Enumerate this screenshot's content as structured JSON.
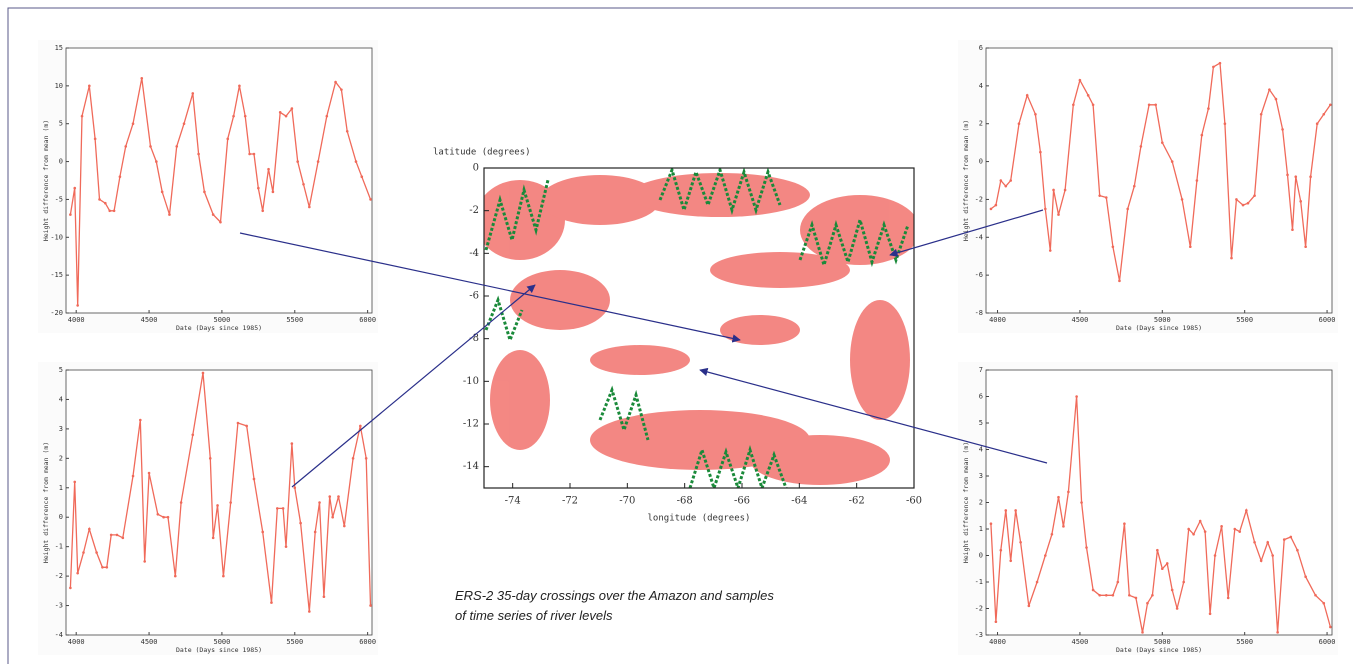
{
  "chart_data": [
    {
      "type": "line",
      "xlabel": "Date (Days since 1985)",
      "ylabel": "Height difference from mean (m)",
      "color": "#f06a5a",
      "xlim": [
        3930,
        6030
      ],
      "xticks": [
        4000,
        4500,
        5000,
        5500,
        6000
      ],
      "ylim": [
        -20,
        15
      ],
      "yticks": [
        -20,
        -15,
        -10,
        -5,
        0,
        5,
        10,
        15
      ],
      "x": [
        3960,
        3990,
        4010,
        4040,
        4090,
        4130,
        4160,
        4200,
        4230,
        4260,
        4300,
        4340,
        4390,
        4450,
        4510,
        4550,
        4590,
        4640,
        4690,
        4740,
        4800,
        4840,
        4880,
        4940,
        4990,
        5040,
        5080,
        5120,
        5160,
        5190,
        5220,
        5250,
        5280,
        5320,
        5350,
        5400,
        5440,
        5480,
        5520,
        5560,
        5600,
        5660,
        5720,
        5780,
        5820,
        5860,
        5920,
        5960,
        6020
      ],
      "values": [
        -7,
        -3.5,
        -19,
        6,
        10,
        3,
        -5,
        -5.5,
        -6.5,
        -6.5,
        -2,
        2,
        5,
        11,
        2,
        0,
        -4,
        -7,
        2,
        5,
        9,
        1,
        -4,
        -7,
        -8,
        3,
        6,
        10,
        6,
        1,
        1,
        -3.5,
        -6.5,
        -1,
        -4,
        6.5,
        6,
        7,
        0,
        -3,
        -6,
        0,
        6,
        10.5,
        9.5,
        4,
        0,
        -2,
        -5
      ]
    },
    {
      "type": "line",
      "xlabel": "Date (Days since 1985)",
      "ylabel": "Height difference from mean (m)",
      "color": "#f06a5a",
      "xlim": [
        3930,
        6030
      ],
      "xticks": [
        4000,
        4500,
        5000,
        5500,
        6000
      ],
      "ylim": [
        -4,
        5
      ],
      "yticks": [
        -4,
        -3,
        -2,
        -1,
        0,
        1,
        2,
        3,
        4,
        5
      ],
      "x": [
        3960,
        3990,
        4010,
        4050,
        4090,
        4140,
        4180,
        4210,
        4240,
        4280,
        4320,
        4390,
        4440,
        4470,
        4500,
        4560,
        4600,
        4630,
        4680,
        4720,
        4800,
        4870,
        4920,
        4940,
        4970,
        5010,
        5060,
        5110,
        5170,
        5220,
        5280,
        5340,
        5380,
        5420,
        5440,
        5480,
        5500,
        5540,
        5600,
        5640,
        5670,
        5700,
        5740,
        5760,
        5800,
        5840,
        5900,
        5950,
        5990,
        6020
      ],
      "values": [
        -2.4,
        1.2,
        -1.9,
        -1.2,
        -0.4,
        -1.2,
        -1.7,
        -1.7,
        -0.6,
        -0.6,
        -0.7,
        1.4,
        3.3,
        -1.5,
        1.5,
        0.1,
        0,
        0,
        -2,
        0.5,
        2.8,
        4.9,
        2,
        -0.7,
        0.4,
        -2,
        0.5,
        3.2,
        3.1,
        1.3,
        -0.5,
        -2.9,
        0.3,
        0.3,
        -1,
        2.5,
        1,
        -0.2,
        -3.2,
        -0.5,
        0.5,
        -2.7,
        0.7,
        0,
        0.7,
        -0.3,
        2,
        3.1,
        2,
        -3
      ]
    },
    {
      "type": "line",
      "xlabel": "Date (Days since 1985)",
      "ylabel": "Height difference from mean (m)",
      "color": "#f06a5a",
      "xlim": [
        3930,
        6030
      ],
      "xticks": [
        4000,
        4500,
        5000,
        5500,
        6000
      ],
      "ylim": [
        -8,
        6
      ],
      "yticks": [
        -8,
        -6,
        -4,
        -2,
        0,
        2,
        4,
        6
      ],
      "x": [
        3960,
        3990,
        4020,
        4050,
        4080,
        4130,
        4180,
        4230,
        4260,
        4290,
        4320,
        4340,
        4370,
        4410,
        4460,
        4500,
        4550,
        4580,
        4620,
        4660,
        4700,
        4740,
        4790,
        4830,
        4870,
        4920,
        4960,
        5000,
        5060,
        5120,
        5170,
        5210,
        5240,
        5280,
        5310,
        5350,
        5380,
        5420,
        5450,
        5490,
        5520,
        5560,
        5600,
        5650,
        5690,
        5730,
        5760,
        5790,
        5810,
        5840,
        5870,
        5900,
        5940,
        5980,
        6020
      ],
      "values": [
        -2.5,
        -2.3,
        -1,
        -1.3,
        -1,
        2,
        3.5,
        2.5,
        0.5,
        -2.5,
        -4.7,
        -1.5,
        -2.8,
        -1.5,
        3,
        4.3,
        3.5,
        3,
        -1.8,
        -1.9,
        -4.5,
        -6.3,
        -2.5,
        -1.3,
        0.8,
        3,
        3,
        1,
        0,
        -2,
        -4.5,
        -1,
        1.4,
        2.8,
        5,
        5.2,
        2,
        -5.1,
        -2,
        -2.3,
        -2.2,
        -1.8,
        2.5,
        3.8,
        3.3,
        1.7,
        -0.7,
        -3.6,
        -0.8,
        -2.1,
        -4.5,
        -0.8,
        2,
        2.5,
        3
      ]
    },
    {
      "type": "line",
      "xlabel": "Date (Days since 1985)",
      "ylabel": "Height difference from mean (m)",
      "color": "#f06a5a",
      "xlim": [
        3930,
        6030
      ],
      "xticks": [
        4000,
        4500,
        5000,
        5500,
        6000
      ],
      "ylim": [
        -3,
        7
      ],
      "yticks": [
        -3,
        -2,
        -1,
        0,
        1,
        2,
        3,
        4,
        5,
        6,
        7
      ],
      "x": [
        3960,
        3990,
        4020,
        4050,
        4080,
        4110,
        4140,
        4190,
        4240,
        4290,
        4330,
        4370,
        4400,
        4430,
        4480,
        4510,
        4540,
        4580,
        4620,
        4660,
        4700,
        4730,
        4770,
        4800,
        4840,
        4880,
        4910,
        4940,
        4970,
        5000,
        5030,
        5060,
        5090,
        5130,
        5160,
        5190,
        5230,
        5260,
        5290,
        5320,
        5360,
        5400,
        5440,
        5470,
        5510,
        5560,
        5600,
        5640,
        5670,
        5700,
        5740,
        5780,
        5820,
        5870,
        5930,
        5980,
        6020
      ],
      "values": [
        1.2,
        -2.5,
        0.2,
        1.7,
        -0.2,
        1.7,
        0.5,
        -1.9,
        -1,
        0,
        0.8,
        2.2,
        1.1,
        2.4,
        6,
        2,
        0.3,
        -1.3,
        -1.5,
        -1.5,
        -1.5,
        -1,
        1.2,
        -1.5,
        -1.6,
        -2.9,
        -1.8,
        -1.5,
        0.2,
        -0.5,
        -0.3,
        -1.3,
        -2,
        -1,
        1,
        0.8,
        1.3,
        0.9,
        -2.2,
        0,
        1.1,
        -1.6,
        1,
        0.9,
        1.7,
        0.5,
        -0.2,
        0.5,
        0,
        -2.9,
        0.6,
        0.7,
        0.2,
        -0.8,
        -1.5,
        -1.8,
        -2.7
      ]
    },
    {
      "type": "map",
      "xlabel": "longitude (degrees)",
      "ylabel": "latitude (degrees)",
      "xlim": [
        -75,
        -60
      ],
      "xticks": [
        -74,
        -72,
        -70,
        -68,
        -66,
        -64,
        -62,
        -60
      ],
      "ylim": [
        -15,
        0
      ],
      "yticks": [
        0,
        -2,
        -4,
        -6,
        -8,
        -10,
        -12,
        -14
      ]
    }
  ],
  "caption": "ERS-2 35-day crossings over the Amazon and samples of time series of river levels"
}
